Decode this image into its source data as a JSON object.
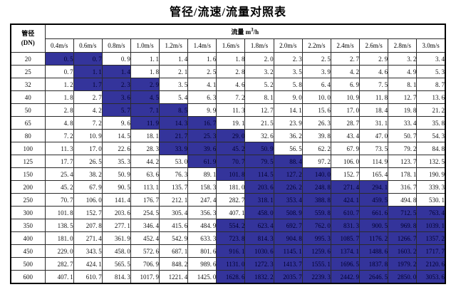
{
  "title": "管径/流速/流量对照表",
  "colors": {
    "highlight_background": "#34349B",
    "highlight_text": "#000030",
    "grid_line": "#2b2b2b",
    "outer_frame": "#000000"
  },
  "table": {
    "corner_header": {
      "line1": "管径",
      "line2": "(DN)"
    },
    "flow_header": {
      "label": "流量",
      "unit_base": "m",
      "unit_sup": "3",
      "unit_rest": "/h"
    },
    "velocity_headers": [
      "0.4m/s",
      "0.6m/s",
      "0.8m/s",
      "1.0m/s",
      "1.2m/s",
      "1.4m/s",
      "1.6m/s",
      "1.8m/s",
      "2.0m/s",
      "2.2m/s",
      "2.4m/s",
      "2.6m/s",
      "2.8m/s",
      "3.0m/s"
    ],
    "rows": [
      {
        "dn": "20",
        "values": [
          "0.5",
          "0.7",
          "0.9",
          "1.1",
          "1.4",
          "1.6",
          "1.8",
          "2.0",
          "2.3",
          "2.5",
          "2.7",
          "2.9",
          "3.2",
          "3.4"
        ],
        "highlight": [
          0,
          1
        ]
      },
      {
        "dn": "25",
        "values": [
          "0.7",
          "1.1",
          "1.4",
          "1.8",
          "2.1",
          "2.5",
          "2.8",
          "3.2",
          "3.5",
          "3.9",
          "4.2",
          "4.6",
          "4.9",
          "5.3"
        ],
        "highlight": [
          1,
          2
        ]
      },
      {
        "dn": "32",
        "values": [
          "1.2",
          "1.7",
          "2.3",
          "2.9",
          "3.5",
          "4.1",
          "4.6",
          "5.2",
          "5.8",
          "6.4",
          "6.9",
          "7.5",
          "8.1",
          "8.7"
        ],
        "highlight": [
          1,
          3
        ]
      },
      {
        "dn": "40",
        "values": [
          "1.8",
          "2.7",
          "3.6",
          "4.5",
          "5.4",
          "6.3",
          "7.2",
          "8.1",
          "9.0",
          "10.0",
          "10.9",
          "11.8",
          "12.7",
          "13.6"
        ],
        "highlight": [
          2,
          3
        ]
      },
      {
        "dn": "50",
        "values": [
          "2.8",
          "4.2",
          "5.7",
          "7.1",
          "8.5",
          "9.9",
          "11.3",
          "12.7",
          "14.1",
          "15.6",
          "17.0",
          "18.4",
          "19.8",
          "21.2"
        ],
        "highlight": [
          2,
          4
        ]
      },
      {
        "dn": "65",
        "values": [
          "4.8",
          "7.2",
          "9.6",
          "11.9",
          "14.3",
          "16.7",
          "19.1",
          "21.5",
          "23.9",
          "26.3",
          "28.7",
          "31.1",
          "33.4",
          "35.8"
        ],
        "highlight": [
          3,
          5
        ]
      },
      {
        "dn": "80",
        "values": [
          "7.2",
          "10.9",
          "14.5",
          "18.1",
          "21.7",
          "25.3",
          "29.0",
          "32.6",
          "36.2",
          "39.8",
          "43.4",
          "47.0",
          "50.7",
          "54.3"
        ],
        "highlight": [
          4,
          6
        ]
      },
      {
        "dn": "100",
        "values": [
          "11.3",
          "17.0",
          "22.6",
          "28.3",
          "33.9",
          "39.6",
          "45.2",
          "50.9",
          "56.5",
          "62.2",
          "67.9",
          "73.5",
          "79.2",
          "84.8"
        ],
        "highlight": [
          4,
          7
        ]
      },
      {
        "dn": "125",
        "values": [
          "17.7",
          "26.5",
          "35.3",
          "44.2",
          "53.0",
          "61.9",
          "70.7",
          "79.5",
          "88.4",
          "97.2",
          "106.0",
          "114.9",
          "123.7",
          "132.5"
        ],
        "highlight": [
          5,
          8
        ]
      },
      {
        "dn": "150",
        "values": [
          "25.4",
          "38.2",
          "50.9",
          "63.6",
          "76.3",
          "89.1",
          "101.8",
          "114.5",
          "127.2",
          "140.0",
          "152.7",
          "165.4",
          "178.1",
          "190.9"
        ],
        "highlight": [
          6,
          9
        ]
      },
      {
        "dn": "200",
        "values": [
          "45.2",
          "67.9",
          "90.5",
          "113.1",
          "135.7",
          "158.3",
          "181.0",
          "203.6",
          "226.2",
          "248.8",
          "271.4",
          "294.1",
          "316.7",
          "339.3"
        ],
        "highlight": [
          7,
          11
        ]
      },
      {
        "dn": "250",
        "values": [
          "70.7",
          "106.0",
          "141.4",
          "176.7",
          "212.1",
          "247.4",
          "282.7",
          "318.1",
          "353.4",
          "388.8",
          "424.1",
          "459.5",
          "494.8",
          "530.1"
        ],
        "highlight": [
          7,
          11
        ]
      },
      {
        "dn": "300",
        "values": [
          "101.8",
          "152.7",
          "203.6",
          "254.5",
          "305.4",
          "356.3",
          "407.1",
          "458.0",
          "508.9",
          "559.8",
          "610.7",
          "661.6",
          "712.5",
          "763.4"
        ],
        "highlight": [
          7,
          13
        ]
      },
      {
        "dn": "350",
        "values": [
          "138.5",
          "207.8",
          "277.1",
          "346.4",
          "415.6",
          "484.9",
          "554.2",
          "623.4",
          "692.7",
          "762.0",
          "831.3",
          "900.5",
          "969.8",
          "1039.1"
        ],
        "highlight": [
          6,
          13
        ]
      },
      {
        "dn": "400",
        "values": [
          "181.0",
          "271.4",
          "361.9",
          "452.4",
          "542.9",
          "633.3",
          "723.8",
          "814.3",
          "904.8",
          "995.3",
          "1085.7",
          "1176.2",
          "1266.7",
          "1357.2"
        ],
        "highlight": [
          6,
          13
        ]
      },
      {
        "dn": "450",
        "values": [
          "229.0",
          "343.5",
          "458.0",
          "572.6",
          "687.1",
          "801.6",
          "916.1",
          "1030.6",
          "1145.1",
          "1259.6",
          "1374.1",
          "1488.6",
          "1603.2",
          "1717.7"
        ],
        "highlight": [
          6,
          13
        ]
      },
      {
        "dn": "500",
        "values": [
          "282.7",
          "424.1",
          "565.5",
          "706.9",
          "848.2",
          "989.6",
          "1131.0",
          "1272.3",
          "1413.7",
          "1555.1",
          "1696.5",
          "1837.8",
          "1979.2",
          "2120.6"
        ],
        "highlight": [
          6,
          13
        ]
      },
      {
        "dn": "600",
        "values": [
          "407.1",
          "610.7",
          "814.3",
          "1017.9",
          "1221.4",
          "1425.0",
          "1628.6",
          "1832.2",
          "2035.7",
          "2239.3",
          "2442.9",
          "2646.5",
          "2850.0",
          "3053.6"
        ],
        "highlight": [
          6,
          13
        ]
      }
    ]
  }
}
